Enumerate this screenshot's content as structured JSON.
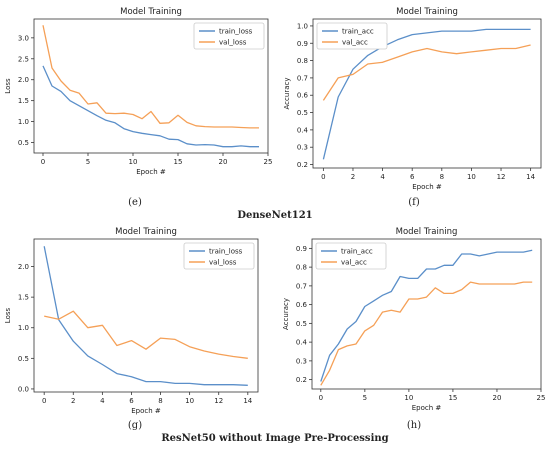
{
  "panel_labels": [
    "(e)",
    "(f)",
    "(g)",
    "(h)"
  ],
  "group_labels": [
    "DenseNet121",
    "ResNet50 without Image Pre-Processing"
  ],
  "colors": {
    "blue": "#5b8fc9",
    "orange": "#f5a057",
    "axis": "#333333",
    "text": "#222222"
  },
  "chart_data": [
    {
      "type": "line",
      "title": "Model Training",
      "xlabel": "Epoch #",
      "ylabel": "Loss",
      "xlim": [
        -1,
        25
      ],
      "ylim": [
        0.25,
        3.45
      ],
      "xticks": [
        0,
        5,
        10,
        15,
        20,
        25
      ],
      "yticks": [
        0.5,
        1.0,
        1.5,
        2.0,
        2.5,
        3.0
      ],
      "ytick_decimals": 1,
      "legend": "top-right",
      "series": [
        {
          "name": "train_loss",
          "color": "#5b8fc9",
          "x": [
            0,
            1,
            2,
            3,
            4,
            5,
            6,
            7,
            8,
            9,
            10,
            11,
            12,
            13,
            14,
            15,
            16,
            17,
            18,
            19,
            20,
            21,
            22,
            23,
            24
          ],
          "y": [
            2.33,
            1.85,
            1.72,
            1.5,
            1.38,
            1.26,
            1.14,
            1.03,
            0.97,
            0.83,
            0.76,
            0.72,
            0.69,
            0.66,
            0.58,
            0.57,
            0.47,
            0.44,
            0.45,
            0.44,
            0.4,
            0.4,
            0.42,
            0.4,
            0.4
          ]
        },
        {
          "name": "val_loss",
          "color": "#f5a057",
          "x": [
            0,
            1,
            2,
            3,
            4,
            5,
            6,
            7,
            8,
            9,
            10,
            11,
            12,
            13,
            14,
            15,
            16,
            17,
            18,
            19,
            20,
            21,
            22,
            23,
            24
          ],
          "y": [
            3.3,
            2.28,
            1.97,
            1.75,
            1.68,
            1.42,
            1.45,
            1.2,
            1.19,
            1.2,
            1.17,
            1.07,
            1.24,
            0.96,
            0.97,
            1.15,
            0.98,
            0.9,
            0.88,
            0.87,
            0.87,
            0.87,
            0.86,
            0.85,
            0.85
          ]
        }
      ]
    },
    {
      "type": "line",
      "title": "Model Training",
      "xlabel": "Epoch #",
      "ylabel": "Accuracy",
      "xlim": [
        -0.7,
        14.7
      ],
      "ylim": [
        0.18,
        1.04
      ],
      "xticks": [
        0,
        2,
        4,
        6,
        8,
        10,
        12,
        14
      ],
      "yticks": [
        0.2,
        0.3,
        0.4,
        0.5,
        0.6,
        0.7,
        0.8,
        0.9,
        1.0
      ],
      "ytick_decimals": 1,
      "legend": "top-left",
      "series": [
        {
          "name": "train_acc",
          "color": "#5b8fc9",
          "x": [
            0,
            1,
            2,
            3,
            4,
            5,
            6,
            7,
            8,
            9,
            10,
            11,
            12,
            13,
            14
          ],
          "y": [
            0.23,
            0.59,
            0.75,
            0.83,
            0.88,
            0.92,
            0.95,
            0.96,
            0.97,
            0.97,
            0.97,
            0.98,
            0.98,
            0.98,
            0.98
          ]
        },
        {
          "name": "val_acc",
          "color": "#f5a057",
          "x": [
            0,
            1,
            2,
            3,
            4,
            5,
            6,
            7,
            8,
            9,
            10,
            11,
            12,
            13,
            14
          ],
          "y": [
            0.57,
            0.7,
            0.72,
            0.78,
            0.79,
            0.82,
            0.85,
            0.87,
            0.85,
            0.84,
            0.85,
            0.86,
            0.87,
            0.87,
            0.89
          ]
        }
      ]
    },
    {
      "type": "line",
      "title": "Model Training",
      "xlabel": "Epoch #",
      "ylabel": "Loss",
      "xlim": [
        -0.7,
        14.7
      ],
      "ylim": [
        -0.05,
        2.45
      ],
      "xticks": [
        0,
        2,
        4,
        6,
        8,
        10,
        12,
        14
      ],
      "yticks": [
        0.0,
        0.5,
        1.0,
        1.5,
        2.0
      ],
      "ytick_decimals": 1,
      "legend": "top-right",
      "series": [
        {
          "name": "train_loss",
          "color": "#5b8fc9",
          "x": [
            0,
            1,
            2,
            3,
            4,
            5,
            6,
            7,
            8,
            9,
            10,
            11,
            12,
            13,
            14
          ],
          "y": [
            2.33,
            1.13,
            0.78,
            0.54,
            0.4,
            0.25,
            0.2,
            0.12,
            0.12,
            0.09,
            0.09,
            0.07,
            0.07,
            0.07,
            0.06
          ]
        },
        {
          "name": "val_loss",
          "color": "#f5a057",
          "x": [
            0,
            1,
            2,
            3,
            4,
            5,
            6,
            7,
            8,
            9,
            10,
            11,
            12,
            13,
            14
          ],
          "y": [
            1.19,
            1.14,
            1.27,
            1.0,
            1.04,
            0.71,
            0.79,
            0.65,
            0.83,
            0.81,
            0.69,
            0.62,
            0.57,
            0.53,
            0.5
          ]
        }
      ]
    },
    {
      "type": "line",
      "title": "Model Training",
      "xlabel": "Epoch #",
      "ylabel": "Accuracy",
      "xlim": [
        -1,
        25
      ],
      "ylim": [
        0.15,
        0.95
      ],
      "xticks": [
        0,
        5,
        10,
        15,
        20,
        25
      ],
      "yticks": [
        0.2,
        0.3,
        0.4,
        0.5,
        0.6,
        0.7,
        0.8,
        0.9
      ],
      "ytick_decimals": 1,
      "legend": "top-left",
      "series": [
        {
          "name": "train_acc",
          "color": "#5b8fc9",
          "x": [
            0,
            1,
            2,
            3,
            4,
            5,
            6,
            7,
            8,
            9,
            10,
            11,
            12,
            13,
            14,
            15,
            16,
            17,
            18,
            19,
            20,
            21,
            22,
            23,
            24
          ],
          "y": [
            0.19,
            0.33,
            0.39,
            0.47,
            0.51,
            0.59,
            0.62,
            0.65,
            0.67,
            0.75,
            0.74,
            0.74,
            0.79,
            0.79,
            0.81,
            0.81,
            0.87,
            0.87,
            0.86,
            0.87,
            0.88,
            0.88,
            0.88,
            0.88,
            0.89
          ]
        },
        {
          "name": "val_acc",
          "color": "#f5a057",
          "x": [
            0,
            1,
            2,
            3,
            4,
            5,
            6,
            7,
            8,
            9,
            10,
            11,
            12,
            13,
            14,
            15,
            16,
            17,
            18,
            19,
            20,
            21,
            22,
            23,
            24
          ],
          "y": [
            0.17,
            0.25,
            0.36,
            0.38,
            0.39,
            0.46,
            0.49,
            0.56,
            0.57,
            0.56,
            0.63,
            0.63,
            0.64,
            0.69,
            0.66,
            0.66,
            0.68,
            0.72,
            0.71,
            0.71,
            0.71,
            0.71,
            0.71,
            0.72,
            0.72
          ]
        }
      ]
    }
  ]
}
